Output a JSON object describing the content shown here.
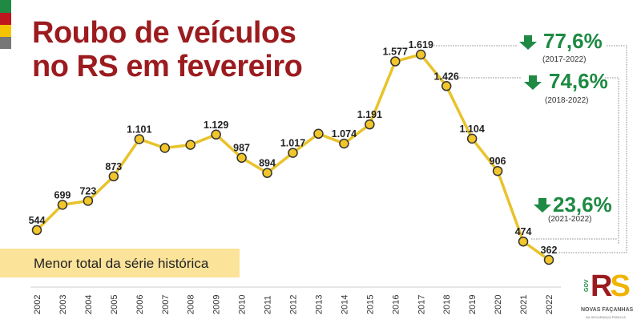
{
  "title_line1": "Roubo de veículos",
  "title_line2": "no RS em fevereiro",
  "note": "Menor total da série histórica",
  "colors": {
    "line": "#e8c32a",
    "marker": "#f2c62a",
    "title": "#9b1b1e",
    "green": "#1e8a43",
    "note_bg": "#fbe39a"
  },
  "stripes": [
    "#1e8a43",
    "#c0161d",
    "#f5c400",
    "#777777"
  ],
  "callouts": [
    {
      "pct": "77,6%",
      "range": "(2017-2022)"
    },
    {
      "pct": "74,6%",
      "range": "(2018-2022)"
    },
    {
      "pct": "23,6%",
      "range": "(2021-2022)"
    }
  ],
  "logo": {
    "text": "RS",
    "gov": "GOV",
    "line1": "NOVAS FAÇANHAS",
    "line2": "NA SEGURANÇA PÚBLICA"
  },
  "chart_data": {
    "type": "line",
    "title": "Roubo de veículos no RS em fevereiro",
    "categories": [
      "2002",
      "2003",
      "2004",
      "2005",
      "2006",
      "2007",
      "2008",
      "2009",
      "2010",
      "2011",
      "2012",
      "2013",
      "2014",
      "2015",
      "2016",
      "2017",
      "2018",
      "2019",
      "2020",
      "2021",
      "2022"
    ],
    "values": [
      544,
      699,
      723,
      873,
      1101,
      1047,
      1066,
      1129,
      987,
      894,
      1017,
      1134,
      1074,
      1191,
      1577,
      1619,
      1426,
      1104,
      906,
      474,
      362
    ],
    "labels": [
      "544",
      "699",
      "723",
      "873",
      "1.101",
      null,
      null,
      "1.129",
      "987",
      "894",
      "1.017",
      null,
      "1.074",
      "1.191",
      "1.577",
      "1.619",
      "1.426",
      "1.104",
      "906",
      "474",
      "362"
    ],
    "ylim": [
      362,
      1619
    ],
    "grid": false
  }
}
